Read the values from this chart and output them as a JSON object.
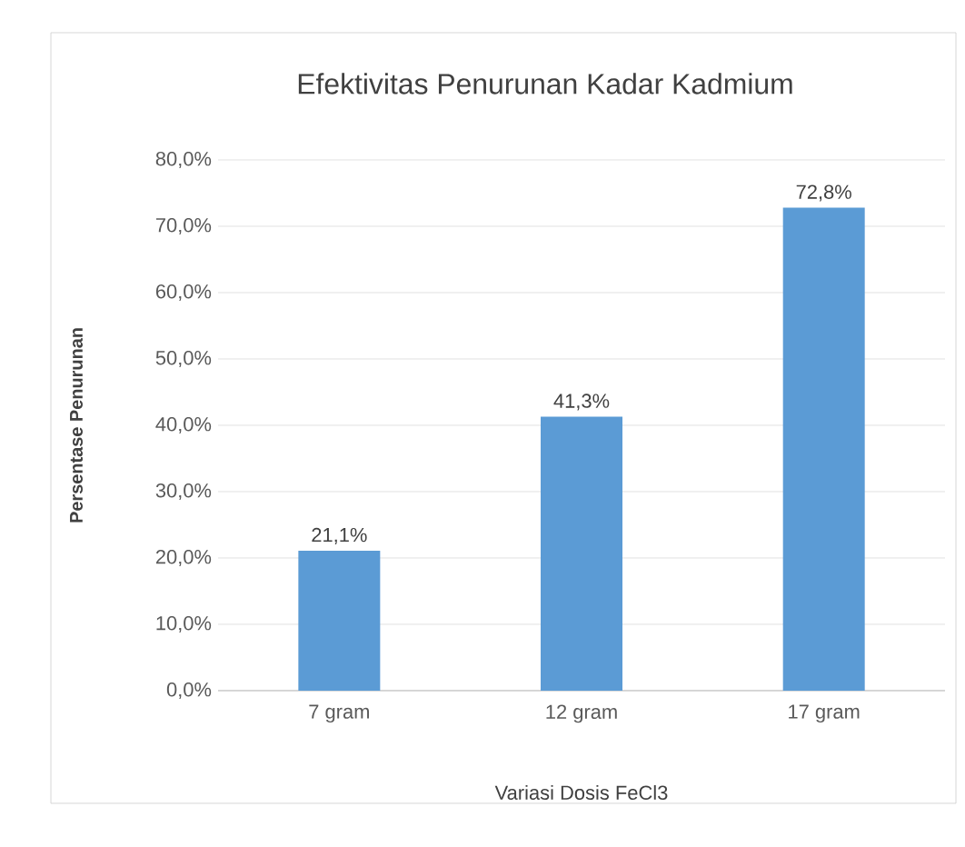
{
  "chart_data": {
    "type": "bar",
    "title": "Efektivitas Penurunan Kadar Kadmium",
    "xlabel": "Variasi Dosis FeCl3",
    "ylabel": "Persentase Penurunan",
    "categories": [
      "7 gram",
      "12 gram",
      "17 gram"
    ],
    "values": [
      21.1,
      41.3,
      72.8
    ],
    "value_labels": [
      "21,1%",
      "41,3%",
      "72,8%"
    ],
    "color": "#5b9bd5",
    "ylim": [
      0,
      80
    ],
    "yticks": [
      {
        "value": 0,
        "label": "0,0%"
      },
      {
        "value": 10,
        "label": "10,0%"
      },
      {
        "value": 20,
        "label": "20,0%"
      },
      {
        "value": 30,
        "label": "30,0%"
      },
      {
        "value": 40,
        "label": "40,0%"
      },
      {
        "value": 50,
        "label": "50,0%"
      },
      {
        "value": 60,
        "label": "60,0%"
      },
      {
        "value": 70,
        "label": "70,0%"
      },
      {
        "value": 80,
        "label": "80,0%"
      }
    ],
    "grid": "y"
  }
}
